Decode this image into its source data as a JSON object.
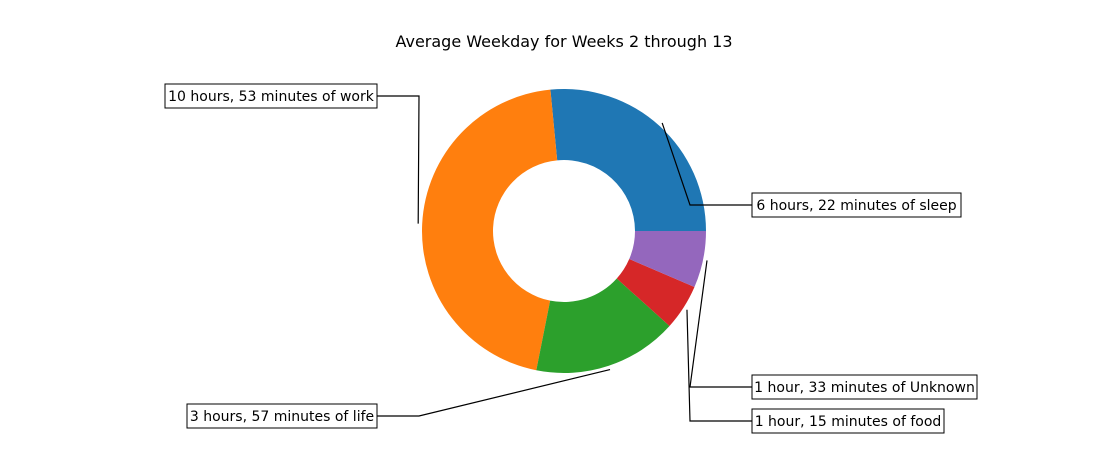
{
  "chart_data": {
    "type": "pie",
    "donut": true,
    "title": "Average Weekday for Weeks 2 through 13",
    "start_angle_deg": 0,
    "direction": "counterclockwise",
    "slices": [
      {
        "label": "6 hours, 22 minutes of sleep",
        "minutes": 382,
        "color": "#1f77b4"
      },
      {
        "label": "10 hours, 53 minutes of work",
        "minutes": 653,
        "color": "#ff7f0e"
      },
      {
        "label": "3 hours, 57 minutes of life",
        "minutes": 237,
        "color": "#2ca02c"
      },
      {
        "label": "1 hour, 15 minutes of food",
        "minutes": 75,
        "color": "#d62728"
      },
      {
        "label": "1 hour, 33 minutes of Unknown",
        "minutes": 93,
        "color": "#9467bd"
      }
    ],
    "legend": "none",
    "grid": false
  }
}
